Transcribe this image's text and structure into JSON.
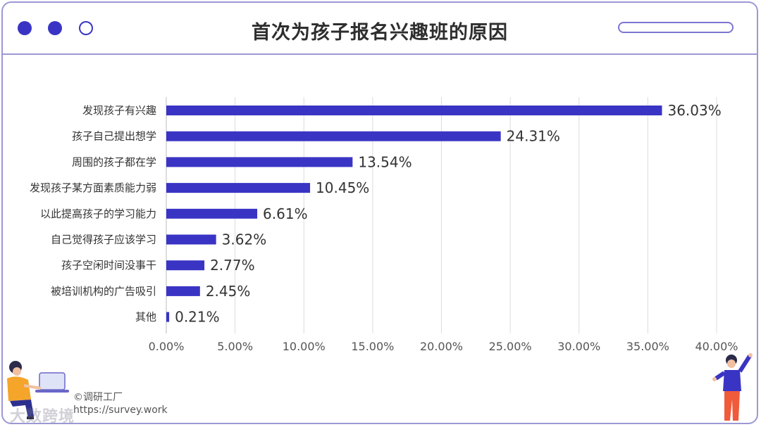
{
  "window": {
    "title": "首次为孩子报名兴趣班的原因",
    "dot_color": "#3a34c4",
    "border_color": "#9c98d6"
  },
  "chart_data": {
    "type": "bar",
    "orientation": "horizontal",
    "title": "首次为孩子报名兴趣班的原因",
    "categories": [
      "发现孩子有兴趣",
      "孩子自己提出想学",
      "周围的孩子都在学",
      "发现孩子某方面素质能力弱",
      "以此提高孩子的学习能力",
      "自己觉得孩子应该学习",
      "孩子空闲时间没事干",
      "被培训机构的广告吸引",
      "其他"
    ],
    "values": [
      36.03,
      24.31,
      13.54,
      10.45,
      6.61,
      3.62,
      2.77,
      2.45,
      0.21
    ],
    "value_labels": [
      "36.03%",
      "24.31%",
      "13.54%",
      "10.45%",
      "6.61%",
      "3.62%",
      "2.77%",
      "2.45%",
      "0.21%"
    ],
    "xlim": [
      0,
      40
    ],
    "x_ticks": [
      "0.00%",
      "5.00%",
      "10.00%",
      "15.00%",
      "20.00%",
      "25.00%",
      "30.00%",
      "35.00%",
      "40.00%"
    ],
    "grid": true,
    "bar_color": "#3a34c4"
  },
  "footer": {
    "copyright": "©调研工厂",
    "url": "https://survey.work",
    "watermark": "大数跨境"
  }
}
